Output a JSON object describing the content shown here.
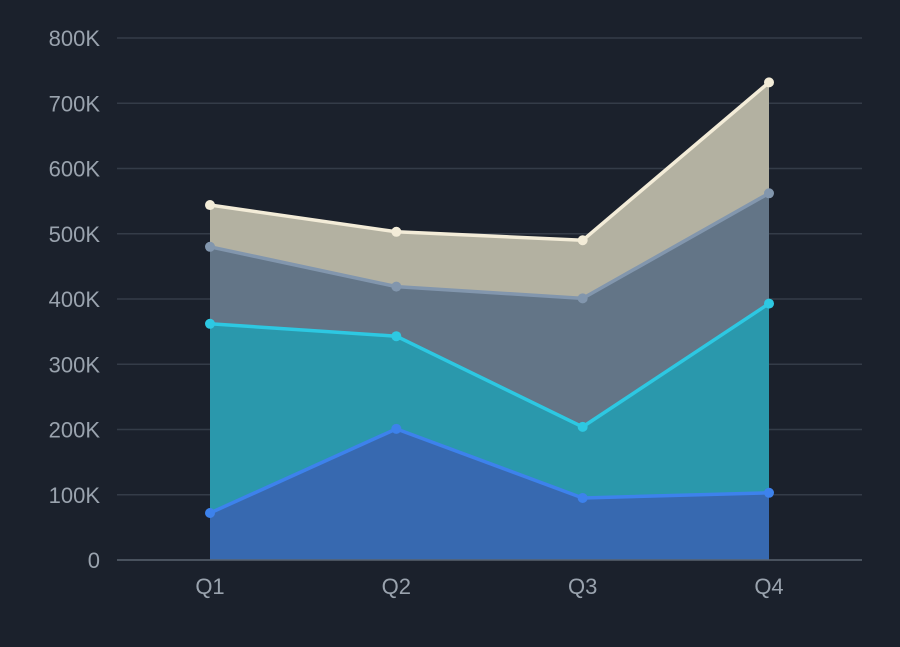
{
  "chart_data": {
    "type": "area",
    "stacked": true,
    "categories": [
      "Q1",
      "Q2",
      "Q3",
      "Q4"
    ],
    "series": [
      {
        "values": [
          72000,
          201000,
          95000,
          103000
        ],
        "color": "#3d82ec",
        "fill": "#3769b0"
      },
      {
        "values": [
          290000,
          142000,
          109000,
          290000
        ],
        "color": "#2dc8e2",
        "fill": "#2a98ac"
      },
      {
        "values": [
          118000,
          76000,
          197000,
          169000
        ],
        "color": "#8296ad",
        "fill": "#637587"
      },
      {
        "values": [
          64000,
          84000,
          89000,
          170000
        ],
        "color": "#f3ecd8",
        "fill": "#b3b1a1"
      }
    ],
    "ylim": [
      0,
      800000
    ],
    "yticks": [
      0,
      100000,
      200000,
      300000,
      400000,
      500000,
      600000,
      700000,
      800000
    ],
    "ytick_labels": [
      "0",
      "100K",
      "200K",
      "300K",
      "400K",
      "500K",
      "600K",
      "700K",
      "800K"
    ],
    "grid": true,
    "legend": "none",
    "colors": {
      "background": "#1b212c",
      "grid": "#343c48",
      "axis": "#59626e",
      "tick_text": "#9aa3ae"
    }
  }
}
